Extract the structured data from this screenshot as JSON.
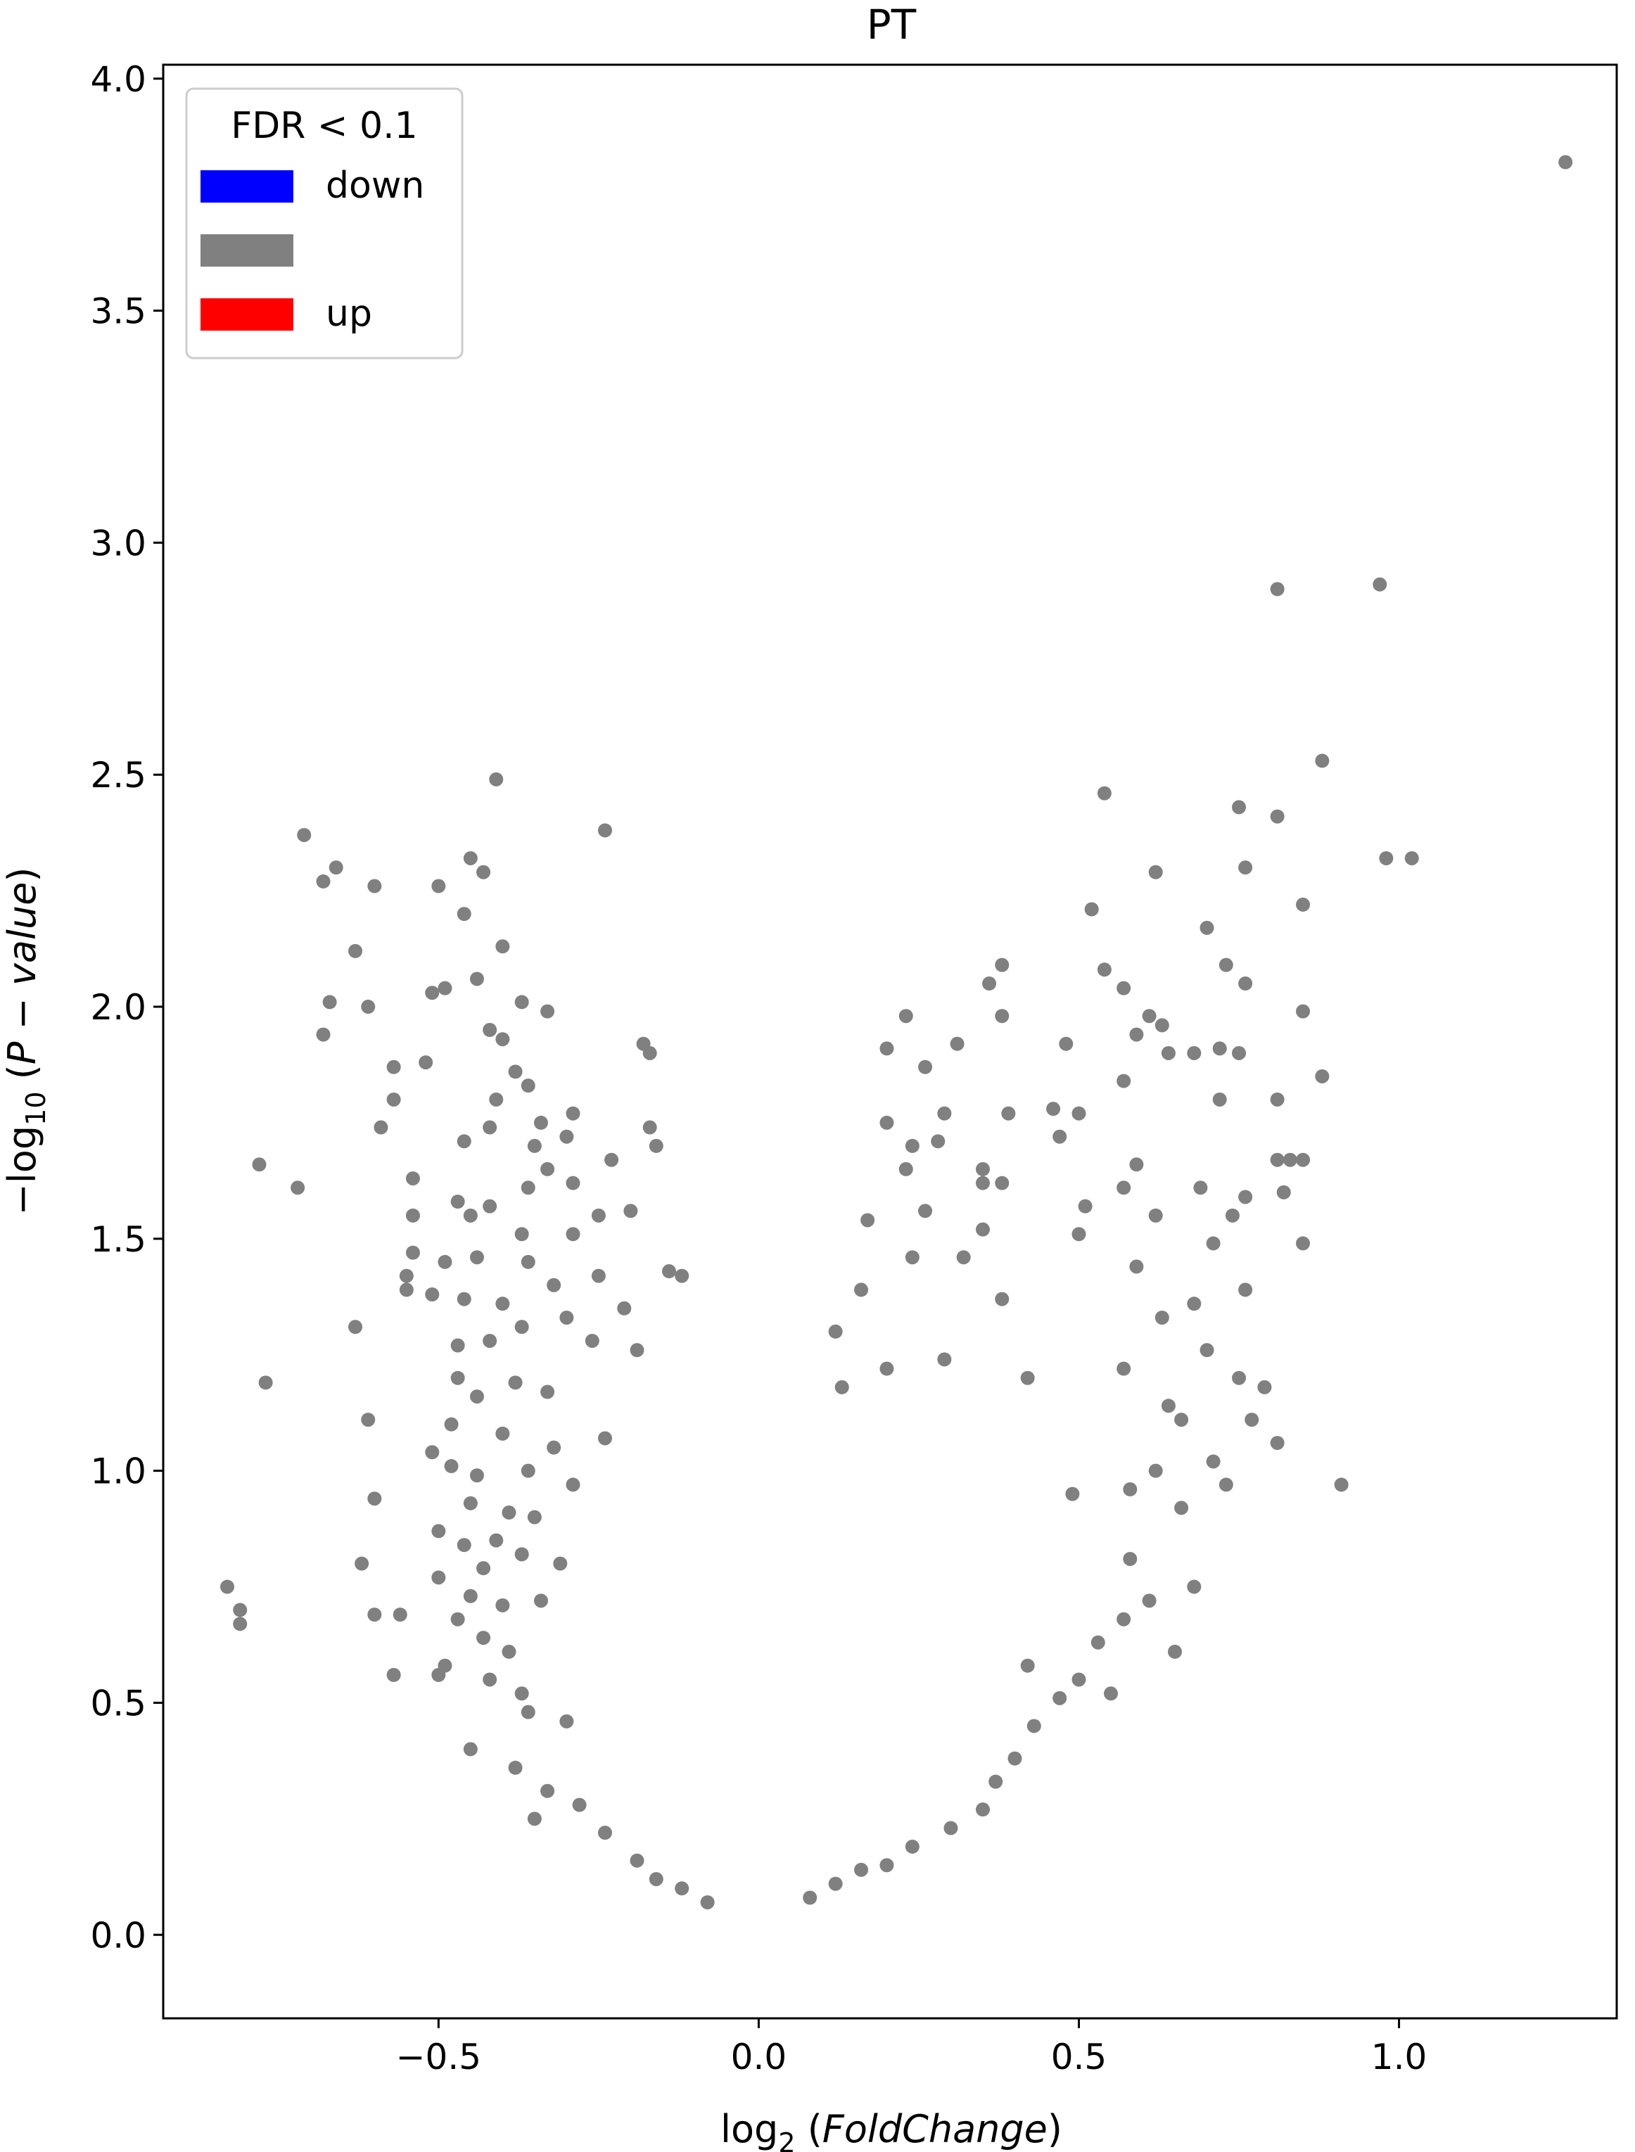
{
  "chart_data": {
    "type": "scatter",
    "title": "PT",
    "xlabel": {
      "prefix": "log",
      "sub": "2",
      "italic": "FoldChange"
    },
    "ylabel": {
      "prefix": "−log",
      "sub": "10",
      "italic": "P − value"
    },
    "xlim": [
      -0.93,
      1.34
    ],
    "ylim": [
      -0.18,
      4.03
    ],
    "x_ticks": [
      {
        "value": -0.5,
        "label": "−0.5"
      },
      {
        "value": 0.0,
        "label": "0.0"
      },
      {
        "value": 0.5,
        "label": "0.5"
      },
      {
        "value": 1.0,
        "label": "1.0"
      }
    ],
    "y_ticks": [
      {
        "value": 0.0,
        "label": "0.0"
      },
      {
        "value": 0.5,
        "label": "0.5"
      },
      {
        "value": 1.0,
        "label": "1.0"
      },
      {
        "value": 1.5,
        "label": "1.5"
      },
      {
        "value": 2.0,
        "label": "2.0"
      },
      {
        "value": 2.5,
        "label": "2.5"
      },
      {
        "value": 3.0,
        "label": "3.0"
      },
      {
        "value": 3.5,
        "label": "3.5"
      },
      {
        "value": 4.0,
        "label": "4.0"
      }
    ],
    "grid": false,
    "legend": {
      "title": "FDR < 0.1",
      "position": "top-left",
      "entries": [
        {
          "label": "down",
          "color": "#0000ff"
        },
        {
          "label": "",
          "color": "#808080"
        },
        {
          "label": "up",
          "color": "#ff0000"
        }
      ]
    },
    "point_color": "#808080",
    "series": [
      {
        "points": [
          [
            1.26,
            3.82
          ],
          [
            0.97,
            2.91
          ],
          [
            0.81,
            2.9
          ],
          [
            0.88,
            2.53
          ],
          [
            0.54,
            2.46
          ],
          [
            0.75,
            2.43
          ],
          [
            0.81,
            2.41
          ],
          [
            0.98,
            2.32
          ],
          [
            1.02,
            2.32
          ],
          [
            0.76,
            2.3
          ],
          [
            0.62,
            2.29
          ],
          [
            0.85,
            2.22
          ],
          [
            0.52,
            2.21
          ],
          [
            0.7,
            2.17
          ],
          [
            0.73,
            2.09
          ],
          [
            0.54,
            2.08
          ],
          [
            0.38,
            2.09
          ],
          [
            0.36,
            2.05
          ],
          [
            0.57,
            2.04
          ],
          [
            0.76,
            2.05
          ],
          [
            0.85,
            1.99
          ],
          [
            0.61,
            1.98
          ],
          [
            0.63,
            1.96
          ],
          [
            0.59,
            1.94
          ],
          [
            0.2,
            1.91
          ],
          [
            0.23,
            1.98
          ],
          [
            0.31,
            1.92
          ],
          [
            0.38,
            1.98
          ],
          [
            0.48,
            1.92
          ],
          [
            0.64,
            1.9
          ],
          [
            0.68,
            1.9
          ],
          [
            0.72,
            1.91
          ],
          [
            0.75,
            1.9
          ],
          [
            0.26,
            1.87
          ],
          [
            0.88,
            1.85
          ],
          [
            0.57,
            1.84
          ],
          [
            0.81,
            1.8
          ],
          [
            0.72,
            1.8
          ],
          [
            0.46,
            1.78
          ],
          [
            0.39,
            1.77
          ],
          [
            0.5,
            1.77
          ],
          [
            0.2,
            1.75
          ],
          [
            0.29,
            1.77
          ],
          [
            0.47,
            1.72
          ],
          [
            0.23,
            1.65
          ],
          [
            0.24,
            1.7
          ],
          [
            0.28,
            1.71
          ],
          [
            0.81,
            1.67
          ],
          [
            0.83,
            1.67
          ],
          [
            0.85,
            1.67
          ],
          [
            0.59,
            1.66
          ],
          [
            0.35,
            1.65
          ],
          [
            0.76,
            1.59
          ],
          [
            0.51,
            1.57
          ],
          [
            0.69,
            1.61
          ],
          [
            0.82,
            1.6
          ],
          [
            0.35,
            1.62
          ],
          [
            0.38,
            1.62
          ],
          [
            0.57,
            1.61
          ],
          [
            0.26,
            1.56
          ],
          [
            0.62,
            1.55
          ],
          [
            0.74,
            1.55
          ],
          [
            0.17,
            1.54
          ],
          [
            0.35,
            1.52
          ],
          [
            0.5,
            1.51
          ],
          [
            0.71,
            1.49
          ],
          [
            0.85,
            1.49
          ],
          [
            0.24,
            1.46
          ],
          [
            0.32,
            1.46
          ],
          [
            0.59,
            1.44
          ],
          [
            0.76,
            1.39
          ],
          [
            0.16,
            1.39
          ],
          [
            0.38,
            1.37
          ],
          [
            0.68,
            1.36
          ],
          [
            0.63,
            1.33
          ],
          [
            0.7,
            1.26
          ],
          [
            0.12,
            1.3
          ],
          [
            0.2,
            1.22
          ],
          [
            0.29,
            1.24
          ],
          [
            0.42,
            1.2
          ],
          [
            0.57,
            1.22
          ],
          [
            0.75,
            1.2
          ],
          [
            0.79,
            1.18
          ],
          [
            0.64,
            1.14
          ],
          [
            0.13,
            1.18
          ],
          [
            0.66,
            1.11
          ],
          [
            0.77,
            1.11
          ],
          [
            0.81,
            1.06
          ],
          [
            0.91,
            0.97
          ],
          [
            0.71,
            1.02
          ],
          [
            0.62,
            1.0
          ],
          [
            0.66,
            0.92
          ],
          [
            0.49,
            0.95
          ],
          [
            0.73,
            0.97
          ],
          [
            0.58,
            0.96
          ],
          [
            0.68,
            0.75
          ],
          [
            0.65,
            0.61
          ],
          [
            0.53,
            0.63
          ],
          [
            0.5,
            0.55
          ],
          [
            0.42,
            0.58
          ],
          [
            -0.71,
            2.37
          ],
          [
            -0.66,
            2.3
          ],
          [
            -0.68,
            2.27
          ],
          [
            -0.6,
            2.26
          ],
          [
            -0.5,
            2.26
          ],
          [
            -0.45,
            2.32
          ],
          [
            -0.43,
            2.29
          ],
          [
            -0.41,
            2.49
          ],
          [
            -0.24,
            2.38
          ],
          [
            -0.46,
            2.2
          ],
          [
            -0.63,
            2.12
          ],
          [
            -0.4,
            2.13
          ],
          [
            -0.44,
            2.06
          ],
          [
            -0.51,
            2.03
          ],
          [
            -0.49,
            2.04
          ],
          [
            -0.67,
            2.01
          ],
          [
            -0.61,
            2.0
          ],
          [
            -0.68,
            1.94
          ],
          [
            -0.37,
            2.01
          ],
          [
            -0.42,
            1.95
          ],
          [
            -0.33,
            1.99
          ],
          [
            -0.4,
            1.93
          ],
          [
            -0.18,
            1.92
          ],
          [
            -0.17,
            1.9
          ],
          [
            -0.52,
            1.88
          ],
          [
            -0.57,
            1.87
          ],
          [
            -0.38,
            1.86
          ],
          [
            -0.36,
            1.83
          ],
          [
            -0.29,
            1.77
          ],
          [
            -0.41,
            1.8
          ],
          [
            -0.57,
            1.8
          ],
          [
            -0.34,
            1.75
          ],
          [
            -0.42,
            1.74
          ],
          [
            -0.17,
            1.74
          ],
          [
            -0.59,
            1.74
          ],
          [
            -0.46,
            1.71
          ],
          [
            -0.35,
            1.7
          ],
          [
            -0.3,
            1.72
          ],
          [
            -0.23,
            1.67
          ],
          [
            -0.16,
            1.7
          ],
          [
            -0.78,
            1.66
          ],
          [
            -0.72,
            1.61
          ],
          [
            -0.54,
            1.63
          ],
          [
            -0.33,
            1.65
          ],
          [
            -0.36,
            1.61
          ],
          [
            -0.29,
            1.62
          ],
          [
            -0.47,
            1.58
          ],
          [
            -0.42,
            1.57
          ],
          [
            -0.45,
            1.55
          ],
          [
            -0.54,
            1.55
          ],
          [
            -0.25,
            1.55
          ],
          [
            -0.2,
            1.56
          ],
          [
            -0.37,
            1.51
          ],
          [
            -0.29,
            1.51
          ],
          [
            -0.54,
            1.47
          ],
          [
            -0.49,
            1.45
          ],
          [
            -0.44,
            1.46
          ],
          [
            -0.36,
            1.45
          ],
          [
            -0.32,
            1.4
          ],
          [
            -0.25,
            1.42
          ],
          [
            -0.55,
            1.42
          ],
          [
            -0.55,
            1.39
          ],
          [
            -0.51,
            1.38
          ],
          [
            -0.46,
            1.37
          ],
          [
            -0.4,
            1.36
          ],
          [
            -0.21,
            1.35
          ],
          [
            -0.14,
            1.43
          ],
          [
            -0.12,
            1.42
          ],
          [
            -0.63,
            1.31
          ],
          [
            -0.47,
            1.27
          ],
          [
            -0.42,
            1.28
          ],
          [
            -0.37,
            1.31
          ],
          [
            -0.3,
            1.33
          ],
          [
            -0.26,
            1.28
          ],
          [
            -0.19,
            1.26
          ],
          [
            -0.77,
            1.19
          ],
          [
            -0.47,
            1.2
          ],
          [
            -0.44,
            1.16
          ],
          [
            -0.38,
            1.19
          ],
          [
            -0.33,
            1.17
          ],
          [
            -0.61,
            1.11
          ],
          [
            -0.48,
            1.1
          ],
          [
            -0.4,
            1.08
          ],
          [
            -0.32,
            1.05
          ],
          [
            -0.24,
            1.07
          ],
          [
            -0.51,
            1.04
          ],
          [
            -0.48,
            1.01
          ],
          [
            -0.44,
            0.99
          ],
          [
            -0.36,
            1.0
          ],
          [
            -0.29,
            0.97
          ],
          [
            -0.6,
            0.94
          ],
          [
            -0.45,
            0.93
          ],
          [
            -0.39,
            0.91
          ],
          [
            -0.35,
            0.9
          ],
          [
            -0.5,
            0.87
          ],
          [
            -0.46,
            0.84
          ],
          [
            -0.41,
            0.85
          ],
          [
            -0.37,
            0.82
          ],
          [
            -0.43,
            0.79
          ],
          [
            -0.31,
            0.8
          ],
          [
            -0.62,
            0.8
          ],
          [
            -0.5,
            0.77
          ],
          [
            -0.45,
            0.73
          ],
          [
            -0.4,
            0.71
          ],
          [
            -0.34,
            0.72
          ],
          [
            -0.83,
            0.75
          ],
          [
            -0.81,
            0.7
          ],
          [
            -0.81,
            0.67
          ],
          [
            -0.6,
            0.69
          ],
          [
            -0.56,
            0.69
          ],
          [
            -0.47,
            0.68
          ],
          [
            -0.43,
            0.64
          ],
          [
            -0.39,
            0.61
          ],
          [
            -0.49,
            0.58
          ],
          [
            -0.5,
            0.56
          ],
          [
            -0.57,
            0.56
          ],
          [
            -0.42,
            0.55
          ],
          [
            -0.37,
            0.52
          ],
          [
            -0.36,
            0.48
          ],
          [
            -0.3,
            0.46
          ],
          [
            -0.45,
            0.4
          ],
          [
            -0.38,
            0.36
          ],
          [
            -0.33,
            0.31
          ],
          [
            -0.35,
            0.25
          ],
          [
            -0.28,
            0.28
          ],
          [
            -0.24,
            0.22
          ],
          [
            -0.19,
            0.16
          ],
          [
            -0.16,
            0.12
          ],
          [
            -0.12,
            0.1
          ],
          [
            -0.08,
            0.07
          ],
          [
            0.08,
            0.08
          ],
          [
            0.12,
            0.11
          ],
          [
            0.16,
            0.14
          ],
          [
            0.2,
            0.15
          ],
          [
            0.24,
            0.19
          ],
          [
            0.3,
            0.23
          ],
          [
            0.35,
            0.27
          ],
          [
            0.37,
            0.33
          ],
          [
            0.4,
            0.38
          ],
          [
            0.43,
            0.45
          ],
          [
            0.47,
            0.51
          ],
          [
            0.55,
            0.52
          ],
          [
            0.57,
            0.68
          ],
          [
            0.61,
            0.72
          ],
          [
            0.58,
            0.81
          ]
        ]
      }
    ]
  }
}
